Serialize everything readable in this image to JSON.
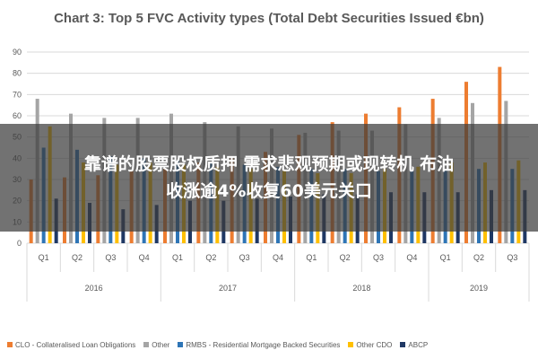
{
  "chart_data": {
    "type": "bar",
    "title": "Chart 3: Top 5 FVC Activity types (Total Debt Securities Issued €bn)",
    "xlabel": "",
    "ylabel": "",
    "ylim": [
      0,
      90
    ],
    "yticks": [
      0,
      10,
      20,
      30,
      40,
      50,
      60,
      70,
      80,
      90
    ],
    "grid": true,
    "legend_position": "bottom",
    "categories": [
      "Q1",
      "Q2",
      "Q3",
      "Q4",
      "Q1",
      "Q2",
      "Q3",
      "Q4",
      "Q1",
      "Q2",
      "Q3",
      "Q4",
      "Q1",
      "Q2",
      "Q3"
    ],
    "category_ticks": [
      "0",
      "10",
      "20",
      "30",
      "40",
      "50",
      "60",
      "70",
      "80",
      "90"
    ],
    "groups": [
      {
        "label": "2016",
        "count": 4
      },
      {
        "label": "2017",
        "count": 4
      },
      {
        "label": "2018",
        "count": 4
      },
      {
        "label": "2019",
        "count": 3
      }
    ],
    "series": [
      {
        "name": "CLO - Collateralised Loan Obligations",
        "color": "#ed7d31",
        "values": [
          30,
          31,
          32,
          34,
          35,
          38,
          40,
          43,
          51,
          57,
          61,
          64,
          68,
          76,
          83
        ]
      },
      {
        "name": "Other",
        "color": "#a5a5a5",
        "values": [
          68,
          61,
          59,
          59,
          61,
          57,
          55,
          54,
          52,
          53,
          53,
          56,
          59,
          66,
          67
        ]
      },
      {
        "name": "RMBS - Residential Mortgage Backed Securities",
        "color": "#2e75b6",
        "values": [
          45,
          44,
          41,
          40,
          39,
          38,
          37,
          36,
          35,
          35,
          34,
          34,
          35,
          35,
          35
        ]
      },
      {
        "name": "Other CDO",
        "color": "#ffc000",
        "values": [
          55,
          38,
          37,
          38,
          37,
          36,
          35,
          34,
          33,
          33,
          35,
          36,
          38,
          38,
          39
        ]
      },
      {
        "name": "ABCP",
        "color": "#1f3864",
        "values": [
          21,
          19,
          16,
          18,
          20,
          20,
          21,
          22,
          23,
          23,
          24,
          24,
          24,
          25,
          25
        ]
      }
    ]
  },
  "overlay": {
    "line1": "靠谱的股票股权质押 需求悲观预期或现转机 布油",
    "line2": "收涨逾4%收复60美元关口"
  }
}
